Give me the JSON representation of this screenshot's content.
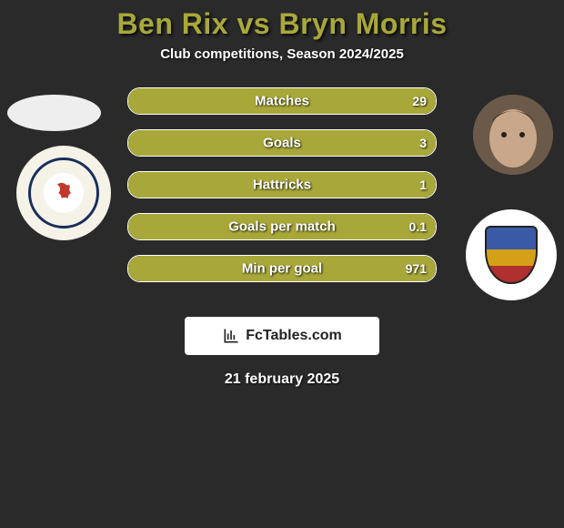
{
  "title": "Ben Rix vs Bryn Morris",
  "subtitle": "Club competitions, Season 2024/2025",
  "date": "21 february 2025",
  "branding_text": "FcTables.com",
  "colors": {
    "accent": "#a8a83a",
    "background": "#2a2a2a",
    "bar_border": "#ffffff",
    "text_shadow": "rgba(0,0,0,0.85)"
  },
  "stats": [
    {
      "label": "Matches",
      "left_value": "",
      "right_value": "29",
      "left_pct": 0,
      "right_pct": 100
    },
    {
      "label": "Goals",
      "left_value": "",
      "right_value": "3",
      "left_pct": 0,
      "right_pct": 100
    },
    {
      "label": "Hattricks",
      "left_value": "",
      "right_value": "1",
      "left_pct": 0,
      "right_pct": 100
    },
    {
      "label": "Goals per match",
      "left_value": "",
      "right_value": "0.1",
      "left_pct": 0,
      "right_pct": 100
    },
    {
      "label": "Min per goal",
      "left_value": "",
      "right_value": "971",
      "left_pct": 0,
      "right_pct": 100
    }
  ],
  "player_left": {
    "name": "Ben Rix"
  },
  "player_right": {
    "name": "Bryn Morris"
  },
  "club_left": {
    "name": "Crewe Alexandra"
  },
  "club_right": {
    "name": "club-badge"
  }
}
